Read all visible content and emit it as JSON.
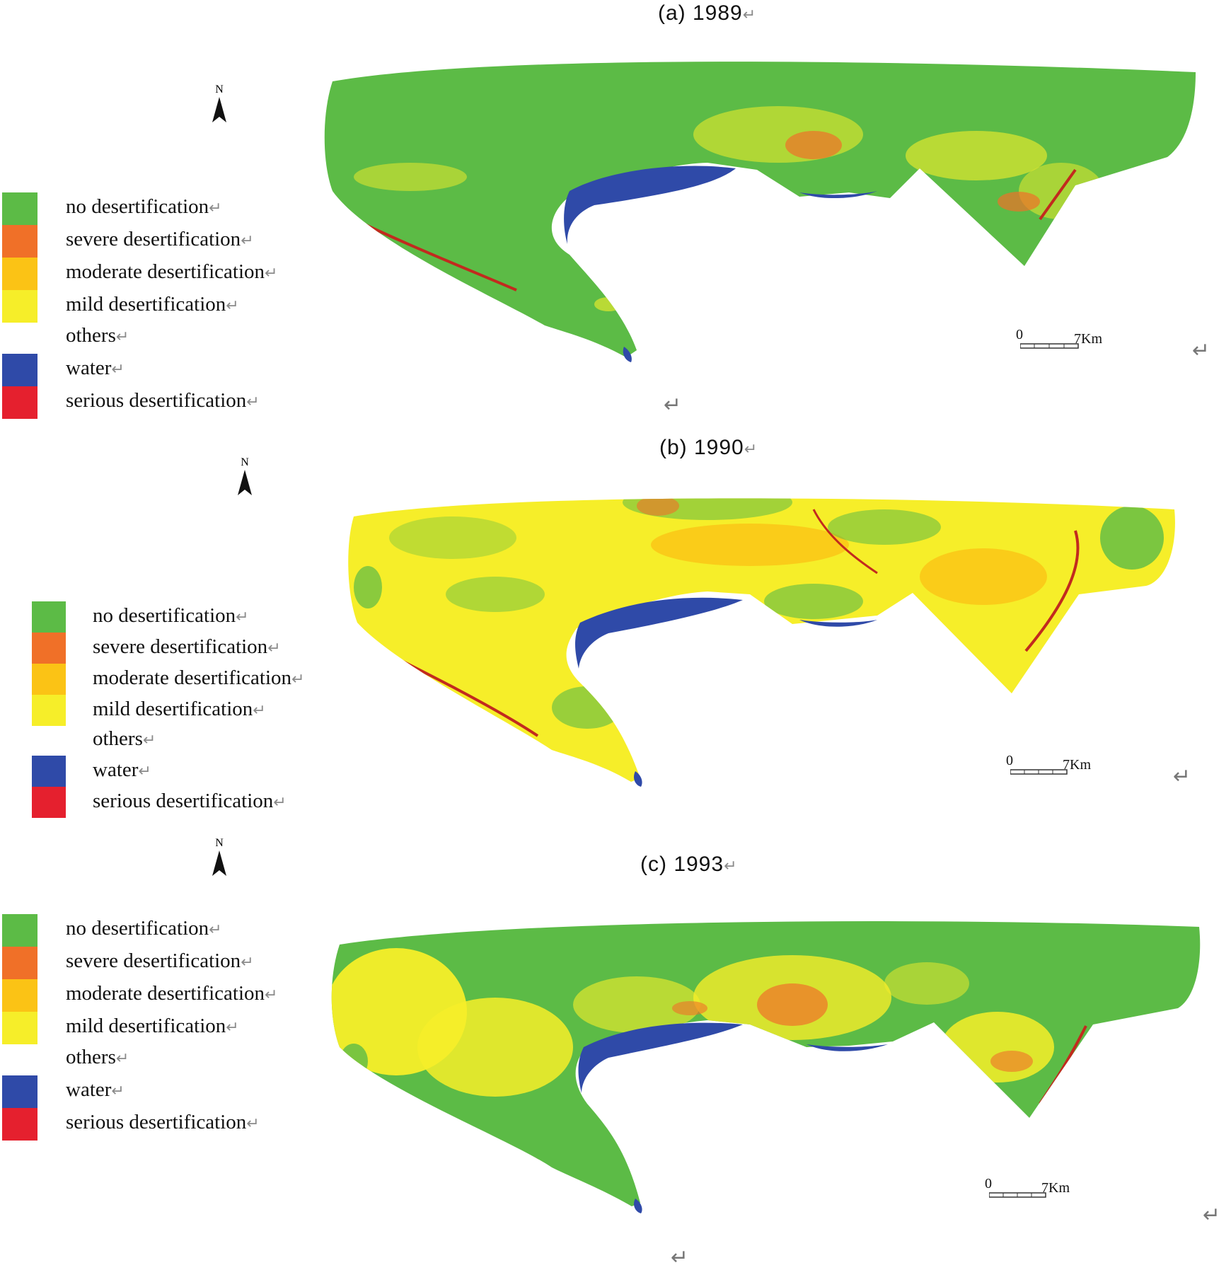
{
  "panels": [
    {
      "id": "a",
      "title": "(a)  1989",
      "scale": {
        "start": "0",
        "end": "7Km"
      },
      "dominant": "green"
    },
    {
      "id": "b",
      "title": "(b)  1990",
      "scale": {
        "start": "0",
        "end": "7Km"
      },
      "dominant": "yellow"
    },
    {
      "id": "c",
      "title": "(c)  1993",
      "scale": {
        "start": "0",
        "end": "7Km"
      },
      "dominant": "mixed"
    }
  ],
  "north_label": "N",
  "return_mark": "↵",
  "legend": [
    {
      "label": "no desertification",
      "color": "#5cbb46"
    },
    {
      "label": "severe desertification",
      "color": "#f07028"
    },
    {
      "label": "moderate desertification",
      "color": "#fbc315"
    },
    {
      "label": "mild desertification",
      "color": "#f6ee29"
    },
    {
      "label": "others",
      "color": "#ffffff"
    },
    {
      "label": "water",
      "color": "#2f4aa8"
    },
    {
      "label": "serious desertification",
      "color": "#e5202e"
    }
  ]
}
